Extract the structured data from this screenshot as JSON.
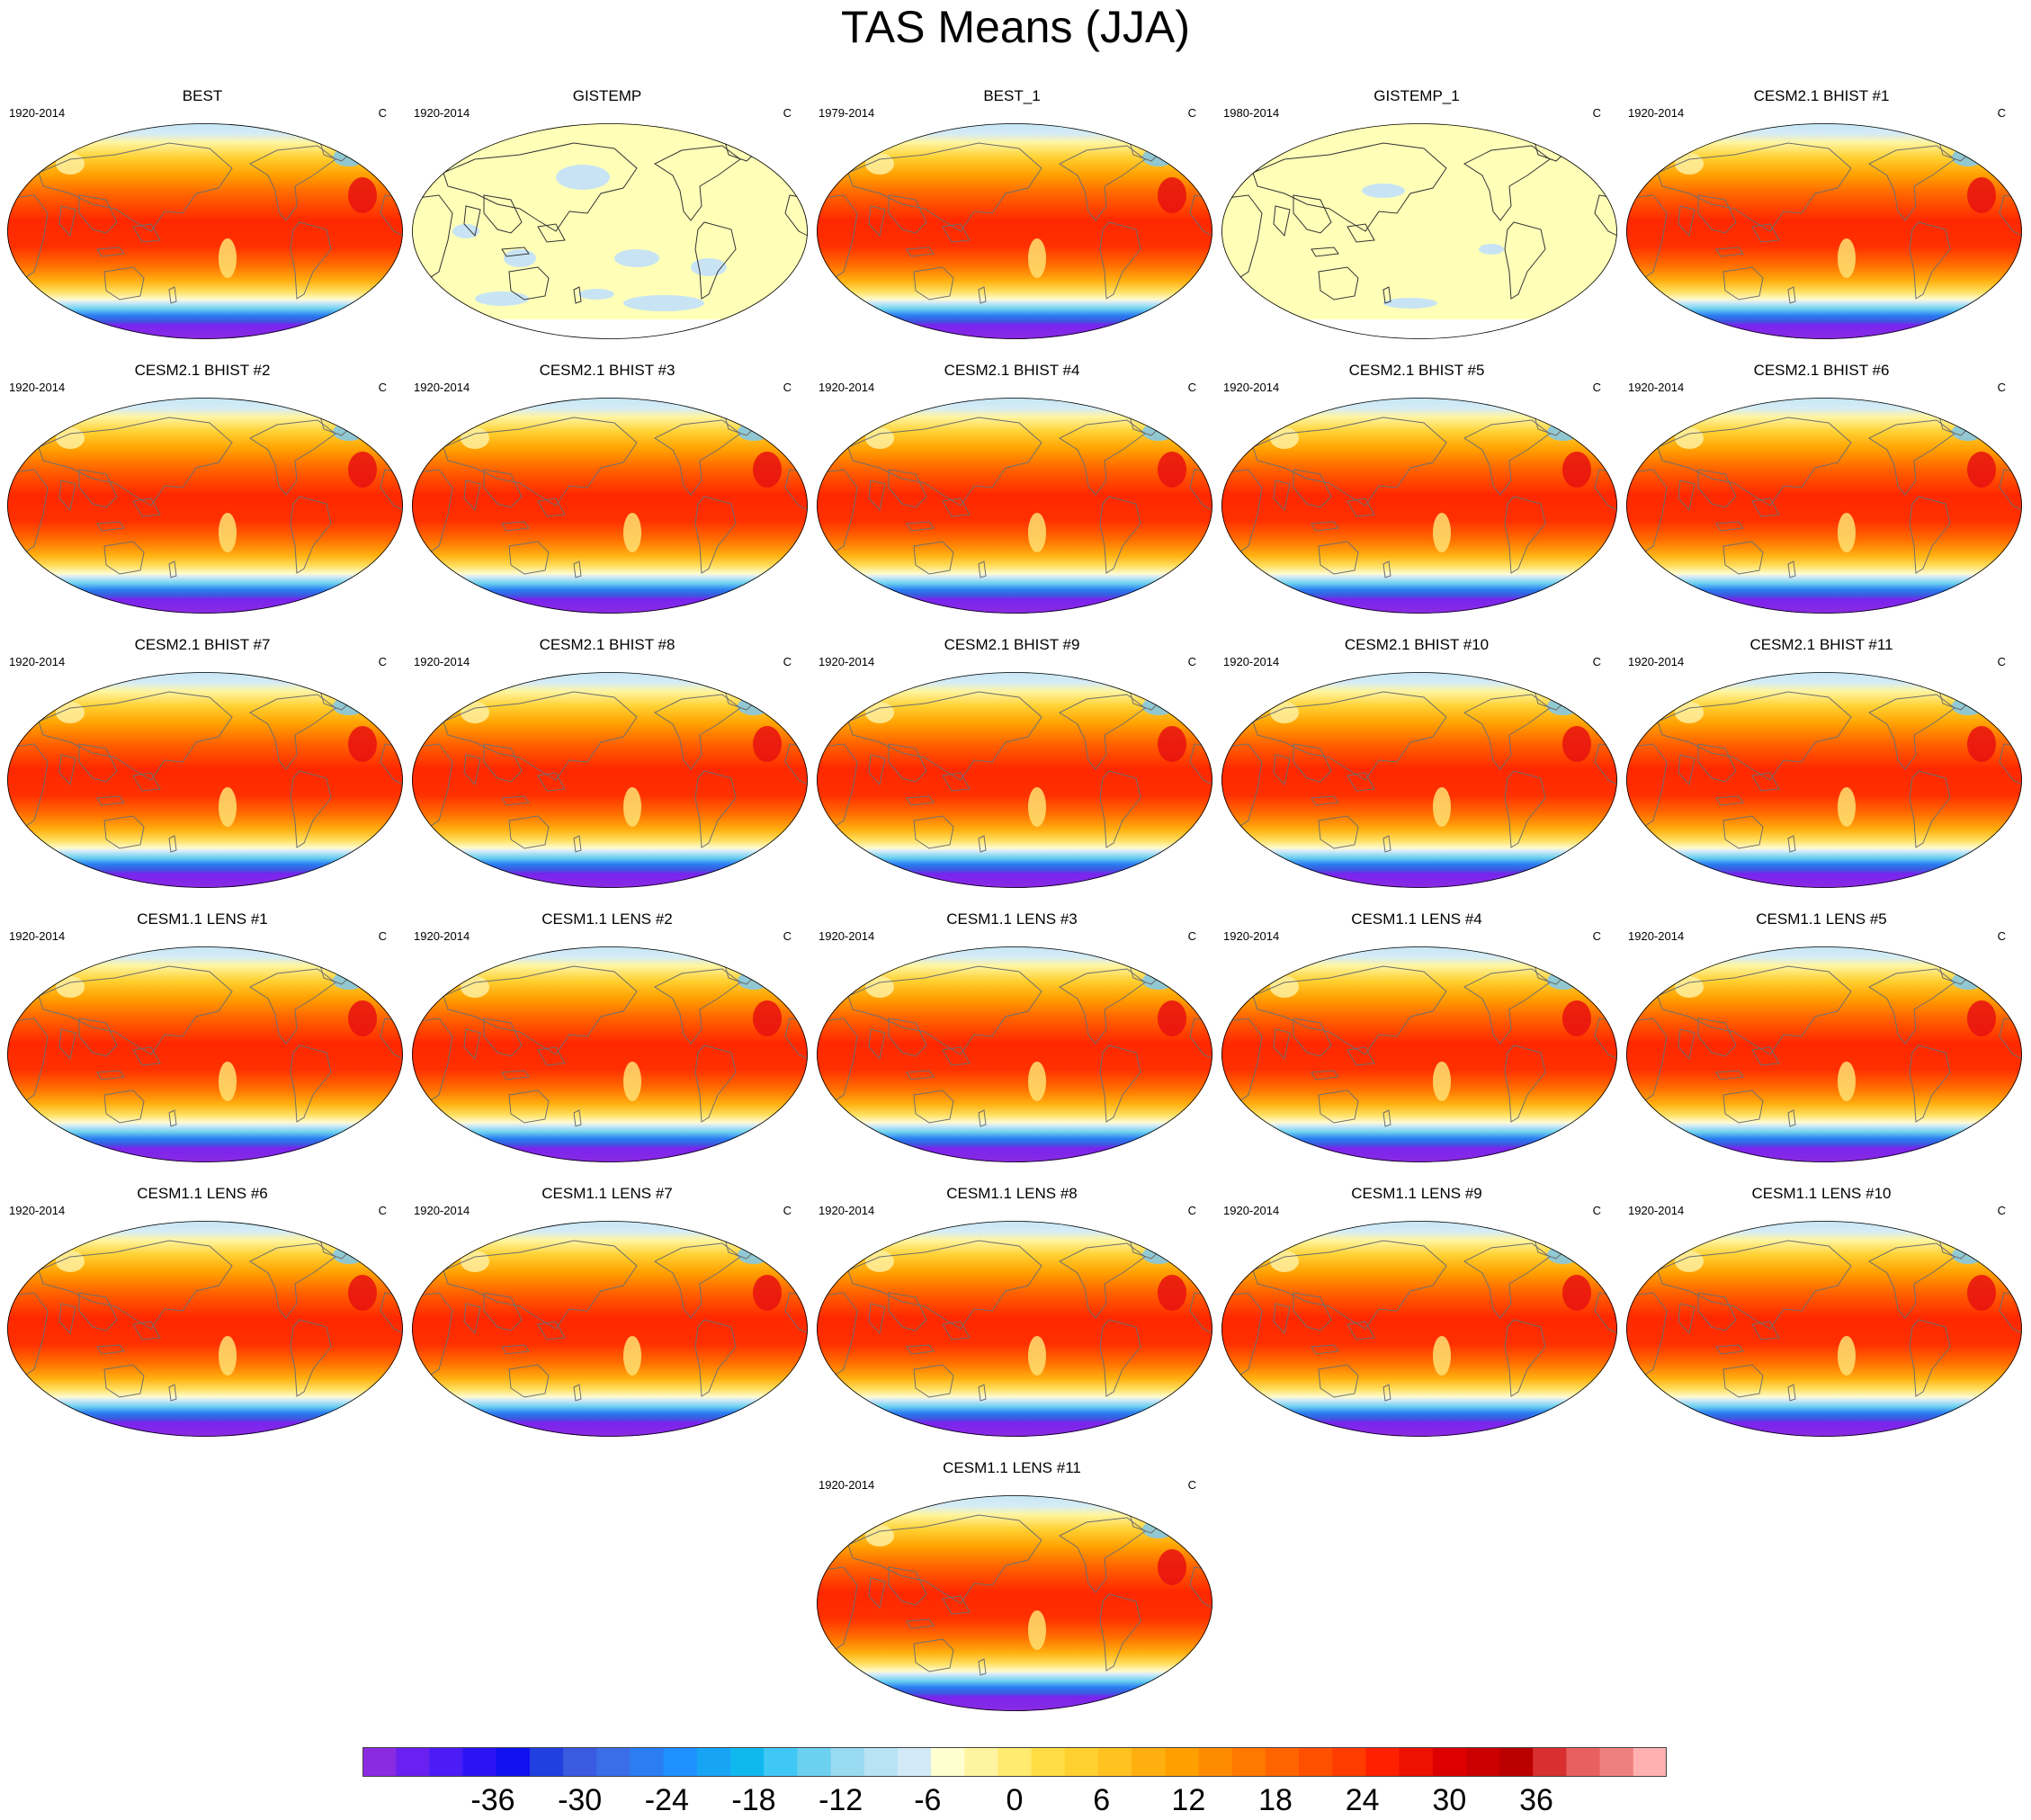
{
  "title": "TAS Means (JJA)",
  "units": "C",
  "panels": [
    {
      "title": "BEST",
      "years": "1920-2014",
      "variant": "full"
    },
    {
      "title": "GISTEMP",
      "years": "1920-2014",
      "variant": "pale"
    },
    {
      "title": "BEST_1",
      "years": "1979-2014",
      "variant": "full"
    },
    {
      "title": "GISTEMP_1",
      "years": "1980-2014",
      "variant": "pale"
    },
    {
      "title": "CESM2.1 BHIST #1",
      "years": "1920-2014",
      "variant": "full"
    },
    {
      "title": "CESM2.1 BHIST #2",
      "years": "1920-2014",
      "variant": "full"
    },
    {
      "title": "CESM2.1 BHIST #3",
      "years": "1920-2014",
      "variant": "full"
    },
    {
      "title": "CESM2.1 BHIST #4",
      "years": "1920-2014",
      "variant": "full"
    },
    {
      "title": "CESM2.1 BHIST #5",
      "years": "1920-2014",
      "variant": "full"
    },
    {
      "title": "CESM2.1 BHIST #6",
      "years": "1920-2014",
      "variant": "full"
    },
    {
      "title": "CESM2.1 BHIST #7",
      "years": "1920-2014",
      "variant": "full"
    },
    {
      "title": "CESM2.1 BHIST #8",
      "years": "1920-2014",
      "variant": "full"
    },
    {
      "title": "CESM2.1 BHIST #9",
      "years": "1920-2014",
      "variant": "full"
    },
    {
      "title": "CESM2.1 BHIST #10",
      "years": "1920-2014",
      "variant": "full"
    },
    {
      "title": "CESM2.1 BHIST #11",
      "years": "1920-2014",
      "variant": "full"
    },
    {
      "title": "CESM1.1 LENS #1",
      "years": "1920-2014",
      "variant": "full"
    },
    {
      "title": "CESM1.1 LENS #2",
      "years": "1920-2014",
      "variant": "full"
    },
    {
      "title": "CESM1.1 LENS #3",
      "years": "1920-2014",
      "variant": "full"
    },
    {
      "title": "CESM1.1 LENS #4",
      "years": "1920-2014",
      "variant": "full"
    },
    {
      "title": "CESM1.1 LENS #5",
      "years": "1920-2014",
      "variant": "full"
    },
    {
      "title": "CESM1.1 LENS #6",
      "years": "1920-2014",
      "variant": "full"
    },
    {
      "title": "CESM1.1 LENS #7",
      "years": "1920-2014",
      "variant": "full"
    },
    {
      "title": "CESM1.1 LENS #8",
      "years": "1920-2014",
      "variant": "full"
    },
    {
      "title": "CESM1.1 LENS #9",
      "years": "1920-2014",
      "variant": "full"
    },
    {
      "title": "CESM1.1 LENS #10",
      "years": "1920-2014",
      "variant": "full"
    },
    {
      "title": "CESM1.1 LENS #11",
      "years": "1920-2014",
      "variant": "full"
    }
  ],
  "colorbar": {
    "colors": [
      "#8a2be2",
      "#6a20f0",
      "#4b1cf5",
      "#2a14f5",
      "#1010f0",
      "#2040e0",
      "#3a5ae0",
      "#3a6ee8",
      "#2a7ef2",
      "#1e90ff",
      "#18a4f5",
      "#10b8f0",
      "#40c8f5",
      "#6cd0f0",
      "#98daf0",
      "#b8e2f5",
      "#d2eaf8",
      "#ffffd0",
      "#fff5a0",
      "#ffeb70",
      "#ffdd44",
      "#ffd030",
      "#ffc220",
      "#ffb010",
      "#ffa000",
      "#ff8c00",
      "#ff7800",
      "#ff6400",
      "#ff5000",
      "#ff3c00",
      "#ff2000",
      "#ee1000",
      "#dd0000",
      "#cc0000",
      "#bb0000",
      "#d83030",
      "#e86060",
      "#f08080",
      "#ffb0b0"
    ],
    "label_values": [
      -36,
      -30,
      -24,
      -18,
      -12,
      -6,
      0,
      6,
      12,
      18,
      24,
      30,
      36
    ],
    "labels": [
      "-36",
      "-30",
      "-24",
      "-18",
      "-12",
      "-6",
      "0",
      "6",
      "12",
      "18",
      "24",
      "30",
      "36"
    ],
    "min": -45,
    "max": 45
  }
}
